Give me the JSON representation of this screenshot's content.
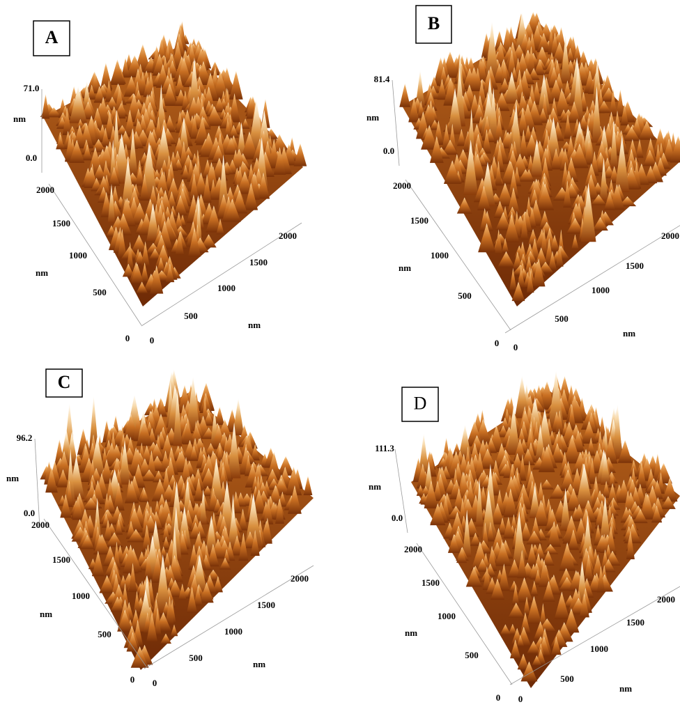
{
  "panels": [
    {
      "label": "A",
      "z_max": "71.0",
      "z_unit": "nm",
      "z_min": "0.0",
      "y_ticks": [
        "2000",
        "1500",
        "1000",
        "500",
        "0"
      ],
      "y_unit": "nm",
      "x_ticks": [
        "0",
        "500",
        "1000",
        "1500",
        "2000"
      ],
      "x_unit": "nm"
    },
    {
      "label": "B",
      "z_max": "81.4",
      "z_unit": "nm",
      "z_min": "0.0",
      "y_ticks": [
        "2000",
        "1500",
        "1000",
        "500",
        "0"
      ],
      "y_unit": "nm",
      "x_ticks": [
        "0",
        "500",
        "1000",
        "1500",
        "2000"
      ],
      "x_unit": "nm"
    },
    {
      "label": "C",
      "z_max": "96.2",
      "z_unit": "nm",
      "z_min": "0.0",
      "y_ticks": [
        "2000",
        "1500",
        "1000",
        "500",
        "0"
      ],
      "y_unit": "nm",
      "x_ticks": [
        "0",
        "500",
        "1000",
        "1500",
        "2000"
      ],
      "x_unit": "nm"
    },
    {
      "label": "D",
      "z_max": "111.3",
      "z_unit": "nm",
      "z_min": "0.0",
      "y_ticks": [
        "2000",
        "1500",
        "1000",
        "500",
        "0"
      ],
      "y_unit": "nm",
      "x_ticks": [
        "0",
        "500",
        "1000",
        "1500",
        "2000"
      ],
      "x_unit": "nm"
    }
  ]
}
